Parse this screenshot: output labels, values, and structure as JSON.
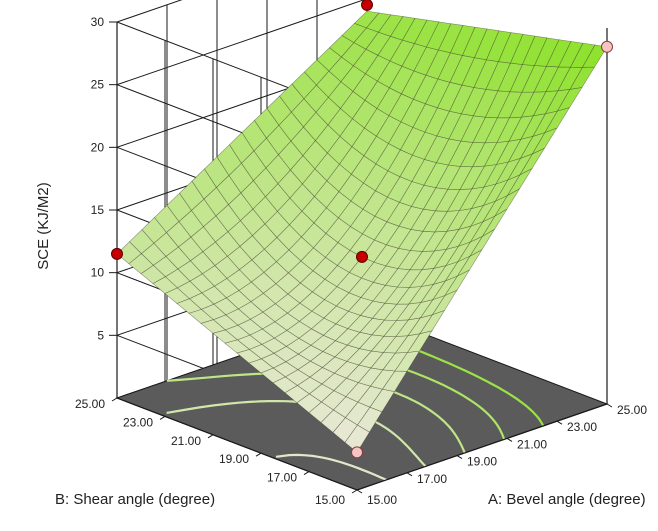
{
  "chart_data": {
    "type": "surface3d",
    "zlabel": "SCE (KJ/M2)",
    "xlabel": "A: Bevel angle (degree)",
    "ylabel": "B: Shear angle (degree)",
    "x_ticks": [
      "15.00",
      "17.00",
      "19.00",
      "21.00",
      "23.00",
      "25.00"
    ],
    "y_ticks": [
      "15.00",
      "17.00",
      "19.00",
      "21.00",
      "23.00",
      "25.00"
    ],
    "z_ticks": [
      "5",
      "10",
      "15",
      "20",
      "25",
      "30"
    ],
    "xlim": [
      15,
      25
    ],
    "ylim": [
      15,
      25
    ],
    "zlim": [
      0,
      30
    ],
    "grid": true,
    "surface": {
      "corners": {
        "A15_B15": 3.0,
        "A25_B15": 28.5,
        "A15_B25": 11.5,
        "A25_B25": 24.0
      },
      "center": 11.5
    },
    "design_points": [
      {
        "A": 15,
        "B": 15,
        "SCE": 3.0,
        "position": "below surface"
      },
      {
        "A": 25,
        "B": 15,
        "SCE": 28.5,
        "position": "below surface"
      },
      {
        "A": 15,
        "B": 25,
        "SCE": 11.5,
        "position": "above surface"
      },
      {
        "A": 25,
        "B": 25,
        "SCE": 24.5,
        "position": "above surface"
      },
      {
        "A": 20,
        "B": 20,
        "SCE": 11.5,
        "position": "above surface"
      }
    ],
    "colors": {
      "low": "#f3efdf",
      "high": "#7ede2a",
      "floor": "#5b5b5b",
      "above_point": "#c40000",
      "below_point": "#f5c5c5"
    }
  }
}
